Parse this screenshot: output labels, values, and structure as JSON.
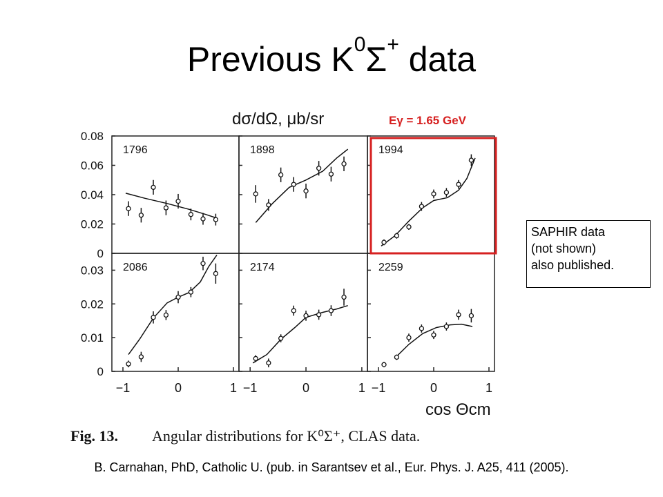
{
  "slide": {
    "title_main": "Previous K",
    "title_sup1": "0",
    "title_sigma": "Σ",
    "title_sup2": "+",
    "title_tail": " data",
    "annotation_lines": [
      "SAPHIR data",
      "(not shown)",
      "also published."
    ],
    "citation": "B. Carnahan, PhD, Catholic U. (pub. in Sarantsev et al., Eur. Phys. J. A25, 411 (2005)."
  },
  "figure": {
    "ylabel": "dσ/dΩ, μb/sr",
    "xlabel": "cos Θcm",
    "caption_label": "Fig. 13.",
    "caption_text": "Angular distributions for K⁰Σ⁺, CLAS data.",
    "highlight_label": "Eγ = 1.65 GeV",
    "highlight_color": "#d62020"
  },
  "chart_data": {
    "type": "scatter",
    "layout": "2x3 panel grid, shared axes per row",
    "xlim": [
      -1.2,
      1.1
    ],
    "x_ticks": [
      "-1",
      "0",
      "1"
    ],
    "rows": [
      {
        "ylim": [
          0,
          0.08
        ],
        "y_ticks": [
          "0",
          "0.02",
          "0.04",
          "0.06",
          "0.08"
        ]
      },
      {
        "ylim": [
          0,
          0.035
        ],
        "y_ticks": [
          "0",
          "0.01",
          "0.02",
          "0.03"
        ]
      }
    ],
    "panels": [
      {
        "label": "1796",
        "row": 0,
        "col": 0,
        "highlighted": false,
        "points": [
          [
            -0.9,
            0.0305,
            0.005
          ],
          [
            -0.67,
            0.026,
            0.005
          ],
          [
            -0.45,
            0.045,
            0.005
          ],
          [
            -0.22,
            0.031,
            0.005
          ],
          [
            0.0,
            0.0355,
            0.005
          ],
          [
            0.23,
            0.0265,
            0.004
          ],
          [
            0.45,
            0.0235,
            0.004
          ],
          [
            0.68,
            0.023,
            0.004
          ]
        ],
        "fit": [
          [
            -0.95,
            0.041
          ],
          [
            -0.6,
            0.0375
          ],
          [
            -0.2,
            0.034
          ],
          [
            0.2,
            0.03
          ],
          [
            0.5,
            0.0265
          ],
          [
            0.7,
            0.024
          ]
        ]
      },
      {
        "label": "1898",
        "row": 0,
        "col": 1,
        "highlighted": false,
        "points": [
          [
            -0.9,
            0.0405,
            0.006
          ],
          [
            -0.67,
            0.033,
            0.004
          ],
          [
            -0.45,
            0.0535,
            0.005
          ],
          [
            -0.22,
            0.047,
            0.005
          ],
          [
            0.0,
            0.0425,
            0.005
          ],
          [
            0.23,
            0.058,
            0.005
          ],
          [
            0.45,
            0.054,
            0.005
          ],
          [
            0.68,
            0.061,
            0.005
          ]
        ],
        "fit": [
          [
            -0.9,
            0.021
          ],
          [
            -0.6,
            0.034
          ],
          [
            -0.3,
            0.045
          ],
          [
            0.0,
            0.05
          ],
          [
            0.3,
            0.056
          ],
          [
            0.55,
            0.065
          ],
          [
            0.75,
            0.071
          ]
        ]
      },
      {
        "label": "1994",
        "row": 0,
        "col": 2,
        "highlighted": true,
        "points": [
          [
            -0.9,
            0.0075,
            0.002
          ],
          [
            -0.67,
            0.012,
            0.002
          ],
          [
            -0.45,
            0.018,
            0.002
          ],
          [
            -0.22,
            0.032,
            0.003
          ],
          [
            0.0,
            0.0405,
            0.003
          ],
          [
            0.23,
            0.0415,
            0.003
          ],
          [
            0.45,
            0.047,
            0.003
          ],
          [
            0.68,
            0.0635,
            0.004
          ]
        ],
        "fit": [
          [
            -0.95,
            0.005
          ],
          [
            -0.7,
            0.012
          ],
          [
            -0.45,
            0.022
          ],
          [
            -0.2,
            0.031
          ],
          [
            0.0,
            0.036
          ],
          [
            0.25,
            0.038
          ],
          [
            0.45,
            0.043
          ],
          [
            0.6,
            0.051
          ],
          [
            0.75,
            0.065
          ]
        ]
      },
      {
        "label": "2086",
        "row": 1,
        "col": 0,
        "highlighted": false,
        "points": [
          [
            -0.9,
            0.0022,
            0.001
          ],
          [
            -0.67,
            0.0043,
            0.0015
          ],
          [
            -0.45,
            0.016,
            0.0018
          ],
          [
            -0.22,
            0.0167,
            0.0015
          ],
          [
            0.0,
            0.022,
            0.0018
          ],
          [
            0.23,
            0.0235,
            0.0015
          ],
          [
            0.45,
            0.032,
            0.002
          ],
          [
            0.68,
            0.029,
            0.003
          ]
        ],
        "fit": [
          [
            -0.9,
            0.005
          ],
          [
            -0.7,
            0.0095
          ],
          [
            -0.45,
            0.0158
          ],
          [
            -0.2,
            0.0203
          ],
          [
            0.0,
            0.022
          ],
          [
            0.2,
            0.0234
          ],
          [
            0.4,
            0.0265
          ],
          [
            0.55,
            0.031
          ],
          [
            0.7,
            0.0345
          ]
        ]
      },
      {
        "label": "2174",
        "row": 1,
        "col": 1,
        "highlighted": false,
        "points": [
          [
            -0.9,
            0.0038,
            0.001
          ],
          [
            -0.67,
            0.0025,
            0.0013
          ],
          [
            -0.45,
            0.0098,
            0.0012
          ],
          [
            -0.22,
            0.018,
            0.0015
          ],
          [
            0.0,
            0.0165,
            0.0015
          ],
          [
            0.23,
            0.0168,
            0.0015
          ],
          [
            0.45,
            0.018,
            0.0016
          ],
          [
            0.68,
            0.022,
            0.0025
          ]
        ],
        "fit": [
          [
            -0.95,
            0.0025
          ],
          [
            -0.7,
            0.005
          ],
          [
            -0.45,
            0.0095
          ],
          [
            -0.2,
            0.013
          ],
          [
            0.0,
            0.016
          ],
          [
            0.3,
            0.0175
          ],
          [
            0.55,
            0.0185
          ],
          [
            0.75,
            0.0195
          ]
        ]
      },
      {
        "label": "2259",
        "row": 1,
        "col": 2,
        "highlighted": false,
        "points": [
          [
            -0.9,
            0.002,
            0.0008
          ],
          [
            -0.67,
            0.0042,
            0.0008
          ],
          [
            -0.45,
            0.01,
            0.0012
          ],
          [
            -0.22,
            0.0127,
            0.0012
          ],
          [
            0.0,
            0.0108,
            0.0012
          ],
          [
            0.23,
            0.0133,
            0.0012
          ],
          [
            0.45,
            0.0168,
            0.0015
          ],
          [
            0.68,
            0.0165,
            0.002
          ]
        ],
        "fit": [
          [
            -0.7,
            0.004
          ],
          [
            -0.45,
            0.008
          ],
          [
            -0.2,
            0.0112
          ],
          [
            0.05,
            0.013
          ],
          [
            0.3,
            0.0138
          ],
          [
            0.5,
            0.014
          ],
          [
            0.7,
            0.0133
          ]
        ]
      }
    ]
  }
}
